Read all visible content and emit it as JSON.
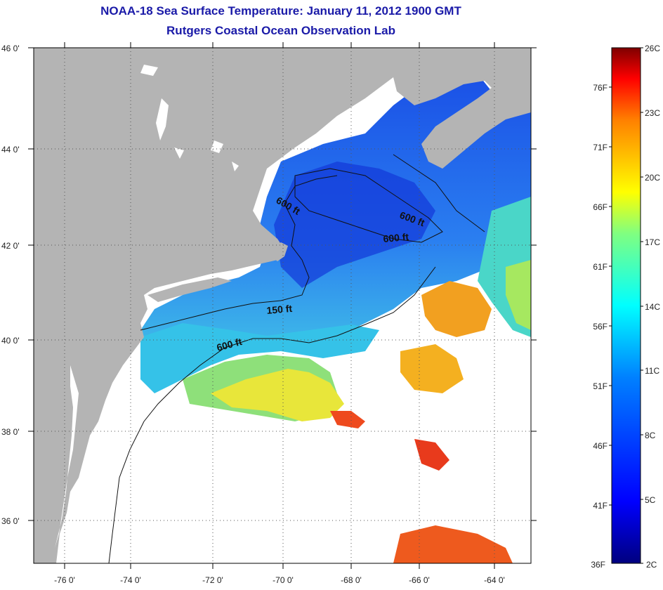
{
  "title": {
    "line1": "NOAA-18 Sea Surface Temperature:  January 11, 2012 1900 GMT",
    "line2": "Rutgers Coastal Ocean Observation Lab"
  },
  "map": {
    "lon_labels": [
      "-76 0'",
      "-74 0'",
      "-72 0'",
      "-70 0'",
      "-68 0'",
      "-66 0'",
      "-64 0'"
    ],
    "lat_labels": [
      "46 0'",
      "44 0'",
      "42 0'",
      "40 0'",
      "38 0'",
      "36 0'"
    ],
    "contour_labels": [
      "600 ft",
      "600 ft",
      "600 ft",
      "150 ft",
      "600 ft"
    ],
    "colors": {
      "land": "#b4b4b4",
      "cloud": "#ffffff",
      "grid": "#555555"
    }
  },
  "colorbar": {
    "fahrenheit": [
      "76F",
      "71F",
      "66F",
      "61F",
      "56F",
      "51F",
      "46F",
      "41F",
      "36F"
    ],
    "celsius": [
      "26C",
      "23C",
      "20C",
      "17C",
      "14C",
      "11C",
      "8C",
      "5C",
      "2C"
    ],
    "range_c": [
      2,
      26
    ]
  }
}
